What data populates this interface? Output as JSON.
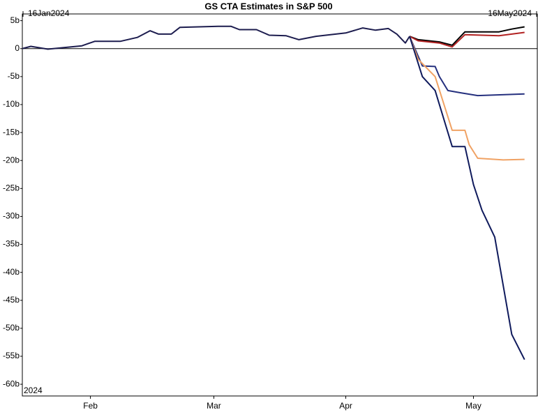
{
  "chart_data": {
    "type": "line",
    "title": "GS CTA Estimates in S&P 500",
    "start_label": "16Jan2024",
    "end_label": "16May2024",
    "year_label": "2024",
    "xlim": [
      "2024-01-16",
      "2024-05-16"
    ],
    "xticks": [
      {
        "value": "2024-02-01",
        "label": "Feb"
      },
      {
        "value": "2024-03-01",
        "label": "Mar"
      },
      {
        "value": "2024-04-01",
        "label": "Apr"
      },
      {
        "value": "2024-05-01",
        "label": "May"
      }
    ],
    "ylim": [
      -62.1,
      6.2
    ],
    "yticks": [
      {
        "value": 5,
        "label": "5b"
      },
      0,
      {
        "value": -5,
        "label": "-5b"
      },
      {
        "value": -10,
        "label": "-10b"
      },
      {
        "value": -15,
        "label": "-15b"
      },
      {
        "value": -20,
        "label": "-20b"
      },
      {
        "value": -25,
        "label": "-25b"
      },
      {
        "value": -30,
        "label": "-30b"
      },
      {
        "value": -35,
        "label": "-35b"
      },
      {
        "value": -40,
        "label": "-40b"
      },
      {
        "value": -45,
        "label": "-45b"
      },
      {
        "value": -50,
        "label": "-50b"
      },
      {
        "value": -55,
        "label": "-55b"
      },
      {
        "value": -60,
        "label": "-60b"
      }
    ],
    "zero_line": true,
    "series": [
      {
        "color": "#1c1c4e",
        "x": [
          "2024-01-16",
          "2024-01-18",
          "2024-01-22",
          "2024-01-26",
          "2024-01-30",
          "2024-02-02",
          "2024-02-08",
          "2024-02-12",
          "2024-02-15",
          "2024-02-17",
          "2024-02-20",
          "2024-02-22",
          "2024-03-02",
          "2024-03-05",
          "2024-03-07",
          "2024-03-11",
          "2024-03-14",
          "2024-03-18",
          "2024-03-21",
          "2024-03-25",
          "2024-04-01",
          "2024-04-05",
          "2024-04-08",
          "2024-04-11",
          "2024-04-13",
          "2024-04-15",
          "2024-04-16"
        ],
        "values": [
          0,
          0.4,
          -0.1,
          0.2,
          0.5,
          1.3,
          1.3,
          2.0,
          3.2,
          2.6,
          2.6,
          3.8,
          4.0,
          4.0,
          3.4,
          3.4,
          2.4,
          2.3,
          1.6,
          2.2,
          2.8,
          3.7,
          3.3,
          3.6,
          2.6,
          1.0,
          2.2
        ]
      },
      {
        "color": "#000000",
        "x": [
          "2024-04-16",
          "2024-04-18",
          "2024-04-23",
          "2024-04-26",
          "2024-04-29",
          "2024-05-07",
          "2024-05-10",
          "2024-05-13"
        ],
        "values": [
          2.2,
          1.6,
          1.2,
          0.6,
          3.0,
          3.0,
          3.5,
          3.9
        ]
      },
      {
        "color": "#b22222",
        "x": [
          "2024-04-16",
          "2024-04-18",
          "2024-04-23",
          "2024-04-26",
          "2024-04-29",
          "2024-05-07",
          "2024-05-10",
          "2024-05-13"
        ],
        "values": [
          2.2,
          1.4,
          1.0,
          0.3,
          2.5,
          2.3,
          2.6,
          2.9
        ]
      },
      {
        "color": "#25307e",
        "x": [
          "2024-04-16",
          "2024-04-19",
          "2024-04-22",
          "2024-04-23",
          "2024-04-25",
          "2024-04-28",
          "2024-05-02",
          "2024-05-13"
        ],
        "values": [
          2.2,
          -3.1,
          -3.2,
          -5.0,
          -7.5,
          -7.9,
          -8.4,
          -8.1
        ]
      },
      {
        "color": "#f0a264",
        "x": [
          "2024-04-16",
          "2024-04-18",
          "2024-04-22",
          "2024-04-26",
          "2024-04-29",
          "2024-04-30",
          "2024-05-02",
          "2024-05-08",
          "2024-05-13"
        ],
        "values": [
          2.2,
          -1.9,
          -5.0,
          -14.6,
          -14.6,
          -17.2,
          -19.6,
          -19.9,
          -19.8
        ]
      },
      {
        "color": "#0f1a5c",
        "x": [
          "2024-04-16",
          "2024-04-19",
          "2024-04-22",
          "2024-04-26",
          "2024-04-29",
          "2024-05-01",
          "2024-05-03",
          "2024-05-06",
          "2024-05-10",
          "2024-05-13"
        ],
        "values": [
          2.2,
          -5.0,
          -7.5,
          -17.5,
          -17.5,
          -24.3,
          -28.9,
          -33.7,
          -51.1,
          -55.6
        ]
      }
    ]
  }
}
